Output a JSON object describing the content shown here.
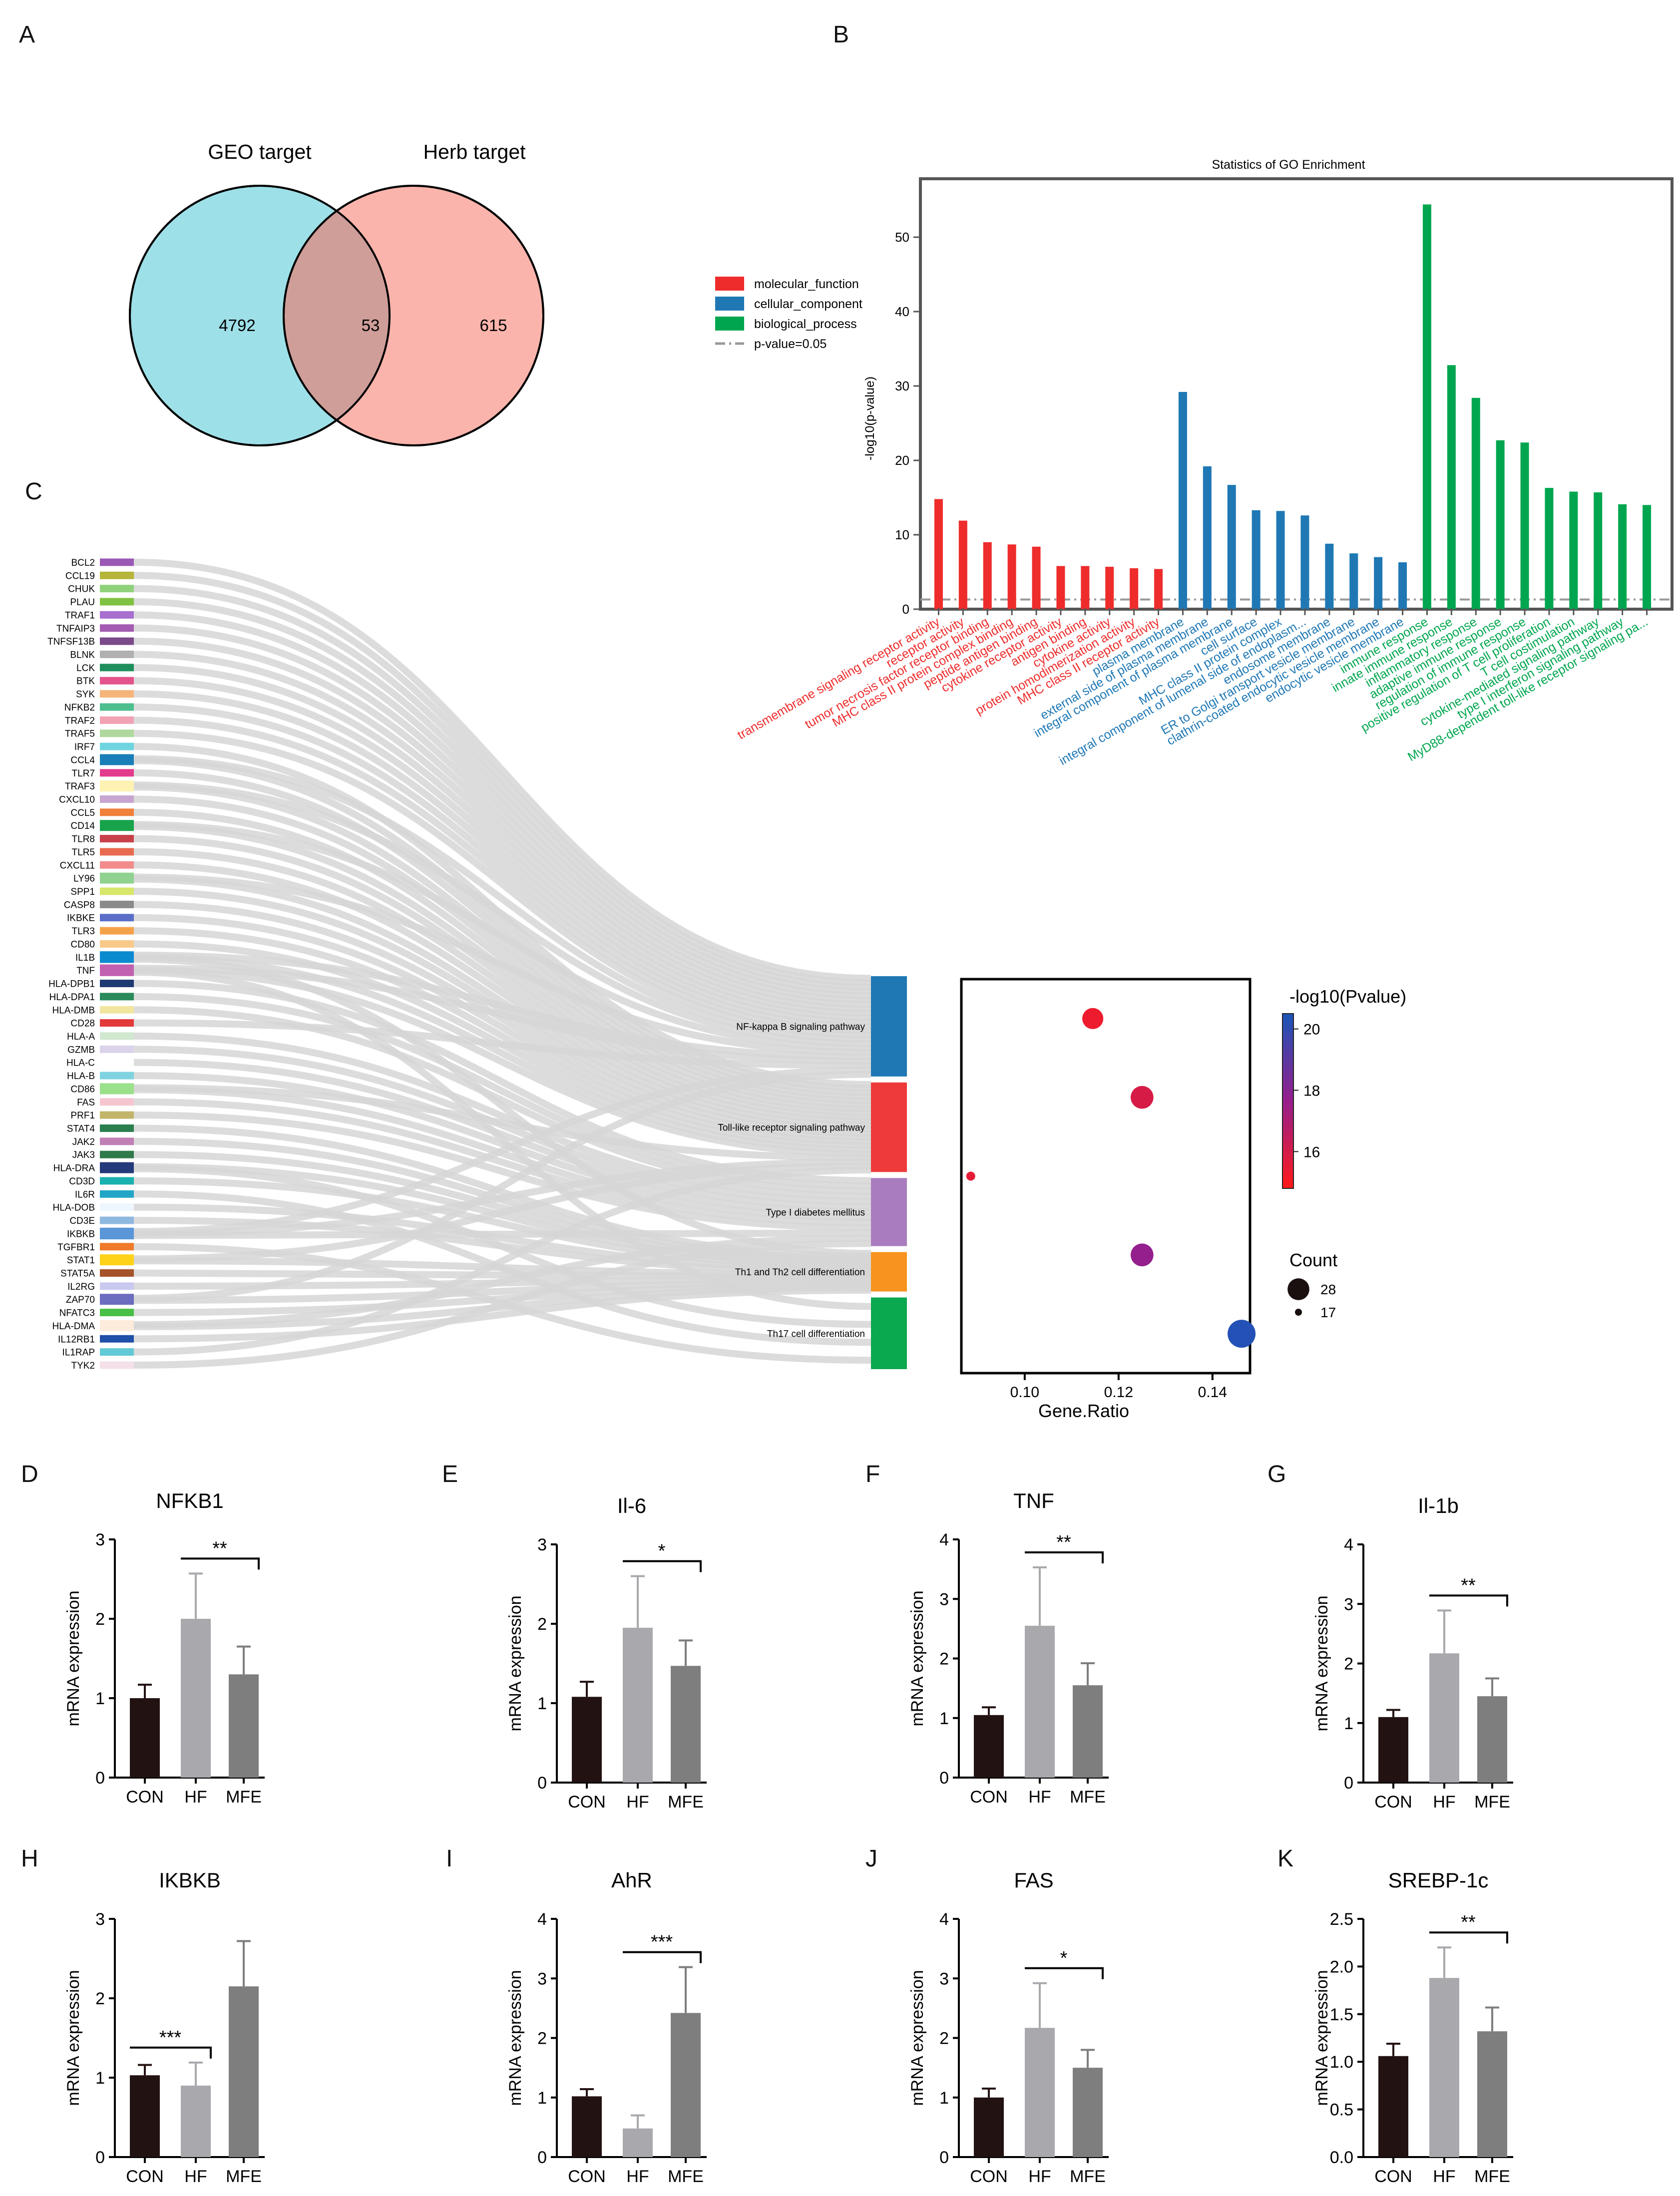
{
  "panel_letters": [
    "A",
    "B",
    "C",
    "D",
    "E",
    "F",
    "G",
    "H",
    "I",
    "J",
    "K"
  ],
  "venn": {
    "left_label": "GEO target",
    "right_label": "Herb target",
    "left_only": "4792",
    "overlap": "53",
    "right_only": "615",
    "colors": {
      "left": "#9ee0e8",
      "right": "#fbb4ac",
      "overlap": "#cf9e99"
    }
  },
  "chart_data": [
    {
      "panel": "B",
      "type": "bar",
      "title": "Statistics of GO Enrichment",
      "ylabel": "-log10(p-value)",
      "ylim": [
        0,
        56
      ],
      "yticks": [
        0,
        10,
        20,
        30,
        40,
        50
      ],
      "legend": [
        {
          "name": "molecular_function",
          "color": "#ee2c2c"
        },
        {
          "name": "cellular_component",
          "color": "#1f78b4"
        },
        {
          "name": "biological_process",
          "color": "#00a64f"
        },
        {
          "name": "p-value=0.05",
          "color": "#999999"
        }
      ],
      "threshold": 1.3,
      "categories": [
        {
          "label": "transmembrane signaling receptor activity",
          "group": 0,
          "value": 14.8
        },
        {
          "label": "receptor activity",
          "group": 0,
          "value": 11.9
        },
        {
          "label": "tumor necrosis factor receptor binding",
          "group": 0,
          "value": 9.0
        },
        {
          "label": "MHC class II protein complex binding",
          "group": 0,
          "value": 8.7
        },
        {
          "label": "peptide antigen binding",
          "group": 0,
          "value": 8.4
        },
        {
          "label": "cytokine receptor activity",
          "group": 0,
          "value": 5.8
        },
        {
          "label": "antigen binding",
          "group": 0,
          "value": 5.8
        },
        {
          "label": "cytokine activity",
          "group": 0,
          "value": 5.7
        },
        {
          "label": "protein homodimerization activity",
          "group": 0,
          "value": 5.5
        },
        {
          "label": "MHC class II receptor activity",
          "group": 0,
          "value": 5.4
        },
        {
          "label": "plasma membrane",
          "group": 1,
          "value": 29.2
        },
        {
          "label": "external side of plasma membrane",
          "group": 1,
          "value": 19.2
        },
        {
          "label": "integral component of plasma membrane",
          "group": 1,
          "value": 16.7
        },
        {
          "label": "cell surface",
          "group": 1,
          "value": 13.3
        },
        {
          "label": "MHC class II protein complex",
          "group": 1,
          "value": 13.2
        },
        {
          "label": "integral component of lumenal side of endoplasm...",
          "group": 1,
          "value": 12.6
        },
        {
          "label": "endosome membrane",
          "group": 1,
          "value": 8.8
        },
        {
          "label": "ER to Golgi transport vesicle membrane",
          "group": 1,
          "value": 7.5
        },
        {
          "label": "clathrin-coated endocytic vesicle membrane",
          "group": 1,
          "value": 7.0
        },
        {
          "label": "endocytic vesicle membrane",
          "group": 1,
          "value": 6.3
        },
        {
          "label": "immune response",
          "group": 2,
          "value": 54.4
        },
        {
          "label": "innate immune response",
          "group": 2,
          "value": 32.8
        },
        {
          "label": "inflammatory response",
          "group": 2,
          "value": 28.4
        },
        {
          "label": "adaptive immune response",
          "group": 2,
          "value": 22.7
        },
        {
          "label": "regulation of immune response",
          "group": 2,
          "value": 22.4
        },
        {
          "label": "positive regulation of T cell proliferation",
          "group": 2,
          "value": 16.3
        },
        {
          "label": "T cell costimulation",
          "group": 2,
          "value": 15.8
        },
        {
          "label": "cytokine-mediated signaling pathway",
          "group": 2,
          "value": 15.7
        },
        {
          "label": "type I interferon signaling pathway",
          "group": 2,
          "value": 14.1
        },
        {
          "label": "MyD88-dependent toll-like receptor signaling pa...",
          "group": 2,
          "value": 14.0
        }
      ]
    },
    {
      "panel": "C",
      "type": "sankey",
      "genes": [
        {
          "name": "BCL2",
          "color": "#9b59b6",
          "targets": [
            0
          ]
        },
        {
          "name": "CCL19",
          "color": "#b5b539",
          "targets": [
            0
          ]
        },
        {
          "name": "CHUK",
          "color": "#8fd27a",
          "targets": [
            0
          ]
        },
        {
          "name": "PLAU",
          "color": "#7fc241",
          "targets": [
            0
          ]
        },
        {
          "name": "TRAF1",
          "color": "#a86fcf",
          "targets": [
            0
          ]
        },
        {
          "name": "TNFAIP3",
          "color": "#a45cb2",
          "targets": [
            0
          ]
        },
        {
          "name": "TNFSF13B",
          "color": "#7a4a8a",
          "targets": [
            0
          ]
        },
        {
          "name": "BLNK",
          "color": "#b0b0b0",
          "targets": [
            0
          ]
        },
        {
          "name": "LCK",
          "color": "#1e8f5c",
          "targets": [
            0
          ]
        },
        {
          "name": "BTK",
          "color": "#e4548c",
          "targets": [
            0
          ]
        },
        {
          "name": "SYK",
          "color": "#f5b57a",
          "targets": [
            0
          ]
        },
        {
          "name": "NFKB2",
          "color": "#4dbf8f",
          "targets": [
            0
          ]
        },
        {
          "name": "TRAF2",
          "color": "#f2a2b5",
          "targets": [
            0
          ]
        },
        {
          "name": "TRAF5",
          "color": "#b0d89e",
          "targets": [
            0
          ]
        },
        {
          "name": "IRF7",
          "color": "#6ed5e0",
          "targets": [
            1
          ]
        },
        {
          "name": "CCL4",
          "color": "#1a7fb8",
          "targets": [
            0,
            1
          ]
        },
        {
          "name": "TLR7",
          "color": "#e23a8d",
          "targets": [
            1
          ]
        },
        {
          "name": "TRAF3",
          "color": "#fff2b2",
          "targets": [
            0,
            1
          ]
        },
        {
          "name": "CXCL10",
          "color": "#c7a5cf",
          "targets": [
            1
          ]
        },
        {
          "name": "CCL5",
          "color": "#f0803a",
          "targets": [
            1
          ]
        },
        {
          "name": "CD14",
          "color": "#18a34a",
          "targets": [
            0,
            1
          ]
        },
        {
          "name": "TLR8",
          "color": "#c8404a",
          "targets": [
            1
          ]
        },
        {
          "name": "TLR5",
          "color": "#e86a50",
          "targets": [
            1
          ]
        },
        {
          "name": "CXCL11",
          "color": "#f28c8c",
          "targets": [
            1
          ]
        },
        {
          "name": "LY96",
          "color": "#8fd28f",
          "targets": [
            0,
            1
          ]
        },
        {
          "name": "SPP1",
          "color": "#d8e66a",
          "targets": [
            1
          ]
        },
        {
          "name": "CASP8",
          "color": "#8a8a8a",
          "targets": [
            1
          ]
        },
        {
          "name": "IKBKE",
          "color": "#5a6ec8",
          "targets": [
            1
          ]
        },
        {
          "name": "TLR3",
          "color": "#f4a24a",
          "targets": [
            1
          ]
        },
        {
          "name": "CD80",
          "color": "#f9c98a",
          "targets": [
            1
          ]
        },
        {
          "name": "IL1B",
          "color": "#0b8ad0",
          "targets": [
            0,
            1,
            3
          ]
        },
        {
          "name": "TNF",
          "color": "#c260b0",
          "targets": [
            0,
            1,
            4
          ]
        },
        {
          "name": "HLA-DPB1",
          "color": "#1f3a73",
          "targets": [
            2
          ]
        },
        {
          "name": "HLA-DPA1",
          "color": "#2a8a5a",
          "targets": [
            2
          ]
        },
        {
          "name": "HLA-DMB",
          "color": "#f0e6a0",
          "targets": [
            2
          ]
        },
        {
          "name": "CD28",
          "color": "#e23a3a",
          "targets": [
            0
          ]
        },
        {
          "name": "HLA-A",
          "color": "#cfe8cf",
          "targets": [
            2
          ]
        },
        {
          "name": "GZMB",
          "color": "#dad3ea",
          "targets": [
            2
          ]
        },
        {
          "name": "HLA-C",
          "color": "#ffffff",
          "targets": [
            2
          ]
        },
        {
          "name": "HLA-B",
          "color": "#7fd3e0",
          "targets": [
            2
          ]
        },
        {
          "name": "CD86",
          "color": "#9be08a",
          "targets": [
            1,
            2
          ]
        },
        {
          "name": "FAS",
          "color": "#f6c6d0",
          "targets": [
            2
          ]
        },
        {
          "name": "PRF1",
          "color": "#c2b56a",
          "targets": [
            2
          ]
        },
        {
          "name": "STAT4",
          "color": "#2a7e4e",
          "targets": [
            3
          ]
        },
        {
          "name": "JAK2",
          "color": "#c07fb5",
          "targets": [
            3
          ]
        },
        {
          "name": "JAK3",
          "color": "#2f7a4a",
          "targets": [
            3
          ]
        },
        {
          "name": "HLA-DRA",
          "color": "#24397a",
          "targets": [
            3,
            4
          ]
        },
        {
          "name": "CD3D",
          "color": "#1bb0b0",
          "targets": [
            3
          ]
        },
        {
          "name": "IL6R",
          "color": "#22a6c8",
          "targets": [
            4
          ]
        },
        {
          "name": "HLA-DOB",
          "color": "#eef6ff",
          "targets": [
            3
          ]
        },
        {
          "name": "CD3E",
          "color": "#8fb8e0",
          "targets": [
            3
          ]
        },
        {
          "name": "IKBKB",
          "color": "#5a96d8",
          "targets": [
            0,
            1,
            2
          ]
        },
        {
          "name": "TGFBR1",
          "color": "#f07a2a",
          "targets": [
            4
          ]
        },
        {
          "name": "STAT1",
          "color": "#ffd21a",
          "targets": [
            1,
            3
          ]
        },
        {
          "name": "STAT5A",
          "color": "#a6522a",
          "targets": [
            3
          ]
        },
        {
          "name": "IL2RG",
          "color": "#c9c9ef",
          "targets": [
            3
          ]
        },
        {
          "name": "ZAP70",
          "color": "#6c6cc0",
          "targets": [
            0,
            3
          ]
        },
        {
          "name": "NFATC3",
          "color": "#48c048",
          "targets": [
            3
          ]
        },
        {
          "name": "HLA-DMA",
          "color": "#fdebdc",
          "targets": [
            2,
            3
          ]
        },
        {
          "name": "IL12RB1",
          "color": "#1f4fa8",
          "targets": [
            3
          ]
        },
        {
          "name": "IL1RAP",
          "color": "#63c9d6",
          "targets": [
            1
          ]
        },
        {
          "name": "TYK2",
          "color": "#f5e0ea",
          "targets": [
            2
          ]
        }
      ],
      "pathways": [
        {
          "name": "NF-kappa B signaling pathway",
          "color": "#1f78b4",
          "weight": 28
        },
        {
          "name": "Toll-like receptor signaling pathway",
          "color": "#ee3a3a",
          "weight": 25
        },
        {
          "name": "Type I diabetes mellitus",
          "color": "#a97cbf",
          "weight": 19
        },
        {
          "name": "Th1 and Th2 cell differentiation",
          "color": "#f7931e",
          "weight": 11
        },
        {
          "name": "Th17 cell differentiation",
          "color": "#0aa84f",
          "weight": 20
        }
      ]
    },
    {
      "panel": "C-bubble",
      "type": "scatter",
      "xlabel": "Gene.Ratio",
      "xlim": [
        0.0865,
        0.148
      ],
      "xticks": [
        "0.10",
        "0.12",
        "0.14"
      ],
      "xtick_values": [
        0.1,
        0.12,
        0.14
      ],
      "points": [
        {
          "pathway": "NF-kappa B signaling pathway",
          "x": 0.1145,
          "count": 24,
          "pvalue": 15.3
        },
        {
          "pathway": "Toll-like receptor signaling pathway",
          "x": 0.125,
          "count": 25,
          "pvalue": 15.9
        },
        {
          "pathway": "Type I diabetes mellitus",
          "x": 0.0885,
          "count": 17,
          "pvalue": 15.5
        },
        {
          "pathway": "Th1 and Th2 cell differentiation",
          "x": 0.125,
          "count": 25,
          "pvalue": 17.7
        },
        {
          "pathway": "Th17 cell differentiation",
          "x": 0.1462,
          "count": 28,
          "pvalue": 20.3
        }
      ],
      "colorbar": {
        "title": "-log10(Pvalue)",
        "range": [
          14.8,
          20.5
        ],
        "ticks": [
          "20",
          "18",
          "16"
        ],
        "tick_values": [
          20,
          18,
          16
        ],
        "low_color": "#ff1a1a",
        "high_color": "#1a55b8"
      },
      "size_legend": {
        "title": "Count",
        "entries": [
          "28",
          "17"
        ],
        "entry_values": [
          28,
          17
        ]
      }
    },
    {
      "panel": "D",
      "type": "bar",
      "title": "NFKB1",
      "ylabel": "mRNA expression",
      "ylim": [
        0,
        3
      ],
      "yticks": [
        "0",
        "1",
        "2",
        "3"
      ],
      "categories": [
        "CON",
        "HF",
        "MFE"
      ],
      "values": [
        1.0,
        2.0,
        1.3
      ],
      "errors": [
        0.17,
        0.57,
        0.35
      ],
      "sig": {
        "from": 1,
        "to": 2,
        "label": "**"
      }
    },
    {
      "panel": "E",
      "type": "bar",
      "title": "Il-6",
      "ylabel": "mRNA expression",
      "ylim": [
        0,
        3
      ],
      "yticks": [
        "0",
        "1",
        "2",
        "3"
      ],
      "categories": [
        "CON",
        "HF",
        "MFE"
      ],
      "values": [
        1.08,
        1.95,
        1.47
      ],
      "errors": [
        0.19,
        0.65,
        0.32
      ],
      "sig": {
        "from": 1,
        "to": 2,
        "label": "*"
      }
    },
    {
      "panel": "F",
      "type": "bar",
      "title": "TNF",
      "ylabel": "mRNA expression",
      "ylim": [
        0,
        4
      ],
      "yticks": [
        "0",
        "1",
        "2",
        "3",
        "4"
      ],
      "categories": [
        "CON",
        "HF",
        "MFE"
      ],
      "values": [
        1.05,
        2.55,
        1.55
      ],
      "errors": [
        0.13,
        0.98,
        0.37
      ],
      "sig": {
        "from": 1,
        "to": 2,
        "label": "**"
      }
    },
    {
      "panel": "G",
      "type": "bar",
      "title": "Il-1b",
      "ylabel": "mRNA expression",
      "ylim": [
        0,
        4
      ],
      "yticks": [
        "0",
        "1",
        "2",
        "3",
        "4"
      ],
      "categories": [
        "CON",
        "HF",
        "MFE"
      ],
      "values": [
        1.1,
        2.17,
        1.45
      ],
      "errors": [
        0.12,
        0.72,
        0.3
      ],
      "sig": {
        "from": 1,
        "to": 2,
        "label": "**"
      }
    },
    {
      "panel": "H",
      "type": "bar",
      "title": "IKBKB",
      "ylabel": "mRNA expression",
      "ylim": [
        0,
        3
      ],
      "yticks": [
        "0",
        "1",
        "2",
        "3"
      ],
      "categories": [
        "CON",
        "HF",
        "MFE"
      ],
      "values": [
        1.03,
        0.9,
        2.15
      ],
      "errors": [
        0.13,
        0.29,
        0.57
      ],
      "sig": {
        "from": 0,
        "to": 1,
        "label": "***"
      }
    },
    {
      "panel": "I",
      "type": "bar",
      "title": "AhR",
      "ylabel": "mRNA expression",
      "ylim": [
        0,
        4
      ],
      "yticks": [
        "0",
        "1",
        "2",
        "3",
        "4"
      ],
      "categories": [
        "CON",
        "HF",
        "MFE"
      ],
      "values": [
        1.02,
        0.48,
        2.42
      ],
      "errors": [
        0.12,
        0.22,
        0.77
      ],
      "sig": {
        "from": 1,
        "to": 2,
        "label": "***"
      }
    },
    {
      "panel": "J",
      "type": "bar",
      "title": "FAS",
      "ylabel": "mRNA expression",
      "ylim": [
        0,
        4
      ],
      "yticks": [
        "0",
        "1",
        "2",
        "3",
        "4"
      ],
      "categories": [
        "CON",
        "HF",
        "MFE"
      ],
      "values": [
        1.0,
        2.17,
        1.5
      ],
      "errors": [
        0.15,
        0.75,
        0.3
      ],
      "sig": {
        "from": 1,
        "to": 2,
        "label": "*"
      }
    },
    {
      "panel": "K",
      "type": "bar",
      "title": "SREBP-1c",
      "ylabel": "mRNA expression",
      "ylim": [
        0,
        2.5
      ],
      "yticks": [
        "0.0",
        "0.5",
        "1.0",
        "1.5",
        "2.0",
        "2.5"
      ],
      "categories": [
        "CON",
        "HF",
        "MFE"
      ],
      "values": [
        1.06,
        1.88,
        1.32
      ],
      "errors": [
        0.13,
        0.32,
        0.25
      ],
      "sig": {
        "from": 1,
        "to": 2,
        "label": "**"
      }
    }
  ]
}
